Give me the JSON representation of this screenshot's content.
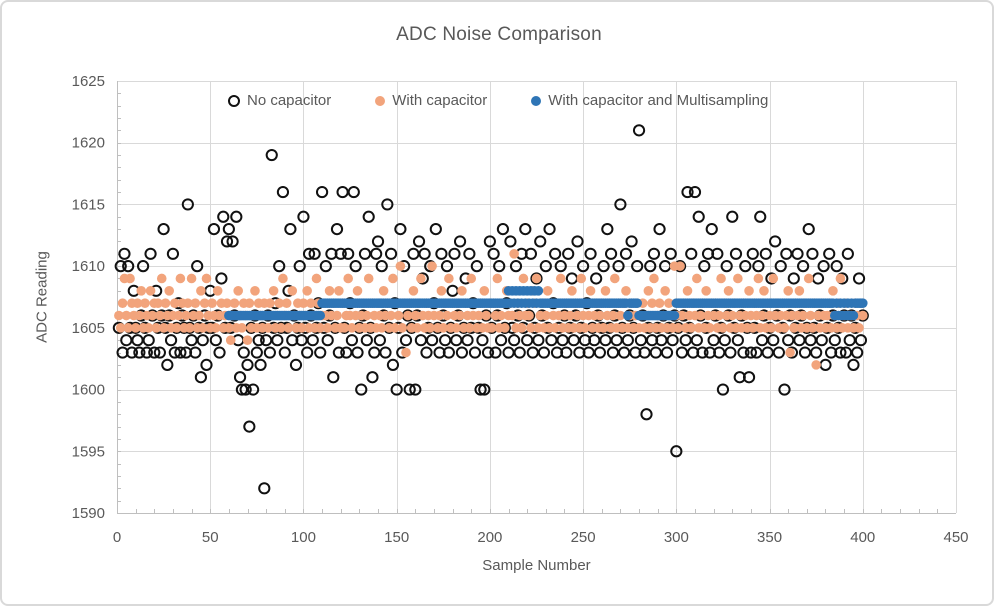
{
  "chart_data": {
    "type": "scatter",
    "title": "ADC Noise Comparison",
    "xlabel": "Sample Number",
    "ylabel": "ADC Reading",
    "xlim": [
      0,
      450
    ],
    "ylim": [
      1590,
      1625
    ],
    "x_ticks": [
      0,
      50,
      100,
      150,
      200,
      250,
      300,
      350,
      400,
      450
    ],
    "y_ticks": [
      1590,
      1595,
      1600,
      1605,
      1610,
      1615,
      1620,
      1625
    ],
    "x_minor_step": 10,
    "y_minor_step": 1,
    "grid": true,
    "legend_position": "top-inside",
    "colors": {
      "no_capacitor": "#111111",
      "with_capacitor": "#F2A47C",
      "multisampling": "#2E75B6",
      "gridline": "#D9D9D9",
      "axis_line": "#BFBFBF",
      "text": "#595959",
      "background": "#FFFFFF",
      "frame_border": "#D9D9D9"
    },
    "series": [
      {
        "name": "No capacitor",
        "marker": "open-circle",
        "color": "#111111",
        "x_start": 1,
        "y": [
          1605,
          1610,
          1603,
          1611,
          1604,
          1610,
          1605,
          1603,
          1608,
          1605,
          1604,
          1603,
          1606,
          1610,
          1605,
          1603,
          1604,
          1611,
          1606,
          1603,
          1608,
          1605,
          1603,
          1606,
          1613,
          1605,
          1602,
          1606,
          1604,
          1611,
          1603,
          1605,
          1607,
          1603,
          1606,
          1605,
          1603,
          1615,
          1605,
          1604,
          1606,
          1603,
          1610,
          1605,
          1601,
          1604,
          1606,
          1602,
          1605,
          1608,
          1605,
          1613,
          1604,
          1606,
          1603,
          1609,
          1614,
          1605,
          1612,
          1613,
          1605,
          1612,
          1606,
          1614,
          1604,
          1601,
          1600,
          1603,
          1600,
          1602,
          1597,
          1605,
          1600,
          1606,
          1603,
          1604,
          1602,
          1605,
          1592,
          1604,
          1606,
          1603,
          1619,
          1605,
          1607,
          1604,
          1610,
          1605,
          1616,
          1603,
          1605,
          1608,
          1613,
          1604,
          1606,
          1602,
          1605,
          1610,
          1604,
          1614,
          1605,
          1603,
          1611,
          1606,
          1604,
          1611,
          1605,
          1607,
          1603,
          1616,
          1605,
          1610,
          1604,
          1606,
          1611,
          1601,
          1605,
          1613,
          1603,
          1611,
          1616,
          1605,
          1603,
          1611,
          1607,
          1604,
          1616,
          1610,
          1603,
          1605,
          1600,
          1606,
          1611,
          1604,
          1614,
          1605,
          1601,
          1603,
          1611,
          1612,
          1604,
          1610,
          1606,
          1603,
          1615,
          1605,
          1611,
          1602,
          1607,
          1600,
          1605,
          1613,
          1603,
          1610,
          1604,
          1606,
          1600,
          1605,
          1611,
          1600,
          1606,
          1612,
          1604,
          1609,
          1611,
          1603,
          1605,
          1610,
          1604,
          1607,
          1613,
          1605,
          1603,
          1611,
          1606,
          1604,
          1610,
          1603,
          1605,
          1608,
          1611,
          1604,
          1606,
          1612,
          1603,
          1605,
          1609,
          1604,
          1611,
          1605,
          1607,
          1603,
          1610,
          1605,
          1600,
          1604,
          1600,
          1606,
          1603,
          1612,
          1605,
          1611,
          1603,
          1606,
          1610,
          1604,
          1613,
          1605,
          1607,
          1603,
          1612,
          1605,
          1604,
          1610,
          1606,
          1603,
          1611,
          1605,
          1613,
          1604,
          1606,
          1611,
          1603,
          1605,
          1609,
          1604,
          1612,
          1606,
          1603,
          1610,
          1605,
          1613,
          1604,
          1607,
          1611,
          1603,
          1605,
          1610,
          1604,
          1606,
          1603,
          1611,
          1605,
          1609,
          1604,
          1606,
          1612,
          1603,
          1605,
          1610,
          1604,
          1607,
          1603,
          1611,
          1605,
          1604,
          1609,
          1606,
          1603,
          1605,
          1610,
          1604,
          1613,
          1605,
          1611,
          1603,
          1606,
          1604,
          1610,
          1615,
          1605,
          1603,
          1611,
          1604,
          1606,
          1612,
          1605,
          1603,
          1610,
          1621,
          1604,
          1606,
          1603,
          1598,
          1605,
          1610,
          1604,
          1611,
          1603,
          1605,
          1613,
          1604,
          1606,
          1610,
          1603,
          1605,
          1611,
          1604,
          1606,
          1595,
          1605,
          1610,
          1603,
          1606,
          1604,
          1616,
          1605,
          1611,
          1603,
          1616,
          1604,
          1614,
          1606,
          1603,
          1610,
          1605,
          1611,
          1603,
          1613,
          1604,
          1606,
          1611,
          1603,
          1605,
          1600,
          1604,
          1610,
          1606,
          1603,
          1614,
          1605,
          1611,
          1604,
          1601,
          1606,
          1603,
          1610,
          1605,
          1601,
          1603,
          1611,
          1605,
          1603,
          1610,
          1614,
          1604,
          1606,
          1611,
          1603,
          1605,
          1609,
          1604,
          1612,
          1606,
          1603,
          1610,
          1605,
          1600,
          1611,
          1604,
          1606,
          1603,
          1609,
          1605,
          1611,
          1604,
          1606,
          1610,
          1603,
          1605,
          1613,
          1604,
          1611,
          1605,
          1603,
          1609,
          1606,
          1604,
          1610,
          1602,
          1605,
          1611,
          1603,
          1606,
          1604,
          1610,
          1605,
          1603,
          1609,
          1606,
          1603,
          1611,
          1604,
          1606,
          1602,
          1605,
          1603,
          1609,
          1604,
          1606
        ]
      },
      {
        "name": "With capacitor",
        "marker": "circle",
        "color": "#F2A47C",
        "x_start": 1,
        "y": [
          1606,
          1605,
          1607,
          1609,
          1606,
          1605,
          1609,
          1607,
          1606,
          1605,
          1607,
          1606,
          1608,
          1605,
          1607,
          1606,
          1605,
          1608,
          1606,
          1607,
          1605,
          1607,
          1606,
          1609,
          1605,
          1607,
          1606,
          1608,
          1605,
          1606,
          1607,
          1605,
          1606,
          1609,
          1607,
          1605,
          1606,
          1607,
          1605,
          1609,
          1606,
          1607,
          1605,
          1606,
          1608,
          1605,
          1607,
          1609,
          1606,
          1605,
          1607,
          1606,
          1605,
          1608,
          1606,
          1607,
          1605,
          1606,
          1607,
          1605,
          1604,
          1606,
          1607,
          1605,
          1608,
          1606,
          1605,
          1607,
          1606,
          1604,
          1607,
          1605,
          1606,
          1608,
          1605,
          1607,
          1606,
          1605,
          1607,
          1606,
          1605,
          1607,
          1606,
          1608,
          1605,
          1606,
          1607,
          1605,
          1609,
          1606,
          1607,
          1605,
          1606,
          1608,
          1606,
          1605,
          1607,
          1606,
          1605,
          1607,
          1606,
          1608,
          1605,
          1607,
          1606,
          1605,
          1609,
          1607,
          1605,
          1606,
          1607,
          1606,
          1605,
          1608,
          1606,
          1607,
          1605,
          1606,
          1608,
          1605,
          1607,
          1605,
          1606,
          1609,
          1606,
          1605,
          1607,
          1606,
          1608,
          1605,
          1606,
          1607,
          1605,
          1606,
          1609,
          1605,
          1607,
          1606,
          1605,
          1607,
          1606,
          1605,
          1608,
          1606,
          1607,
          1605,
          1606,
          1609,
          1605,
          1607,
          1606,
          1610,
          1605,
          1607,
          1603,
          1606,
          1607,
          1605,
          1608,
          1606,
          1605,
          1607,
          1609,
          1606,
          1605,
          1607,
          1606,
          1605,
          1610,
          1606,
          1607,
          1605,
          1606,
          1608,
          1605,
          1607,
          1606,
          1609,
          1605,
          1607,
          1606,
          1605,
          1607,
          1606,
          1608,
          1605,
          1607,
          1606,
          1605,
          1609,
          1606,
          1607,
          1605,
          1606,
          1607,
          1605,
          1608,
          1606,
          1605,
          1607,
          1605,
          1607,
          1606,
          1609,
          1605,
          1606,
          1607,
          1605,
          1608,
          1606,
          1607,
          1606,
          1611,
          1605,
          1607,
          1606,
          1605,
          1609,
          1606,
          1607,
          1606,
          1605,
          1608,
          1607,
          1609,
          1605,
          1606,
          1607,
          1605,
          1606,
          1608,
          1605,
          1607,
          1606,
          1605,
          1607,
          1606,
          1609,
          1605,
          1606,
          1607,
          1605,
          1606,
          1608,
          1605,
          1607,
          1606,
          1605,
          1609,
          1606,
          1605,
          1607,
          1606,
          1608,
          1605,
          1606,
          1607,
          1605,
          1606,
          1607,
          1605,
          1608,
          1606,
          1607,
          1605,
          1606,
          1609,
          1605,
          1607,
          1606,
          1605,
          1607,
          1608,
          1605,
          1606,
          1607,
          1605,
          1606,
          1607,
          1605,
          1606,
          1607,
          1605,
          1606,
          1608,
          1605,
          1607,
          1609,
          1605,
          1606,
          1607,
          1605,
          1606,
          1608,
          1605,
          1607,
          1606,
          1605,
          1610,
          1606,
          1605,
          1610,
          1606,
          1607,
          1605,
          1608,
          1606,
          1605,
          1607,
          1606,
          1609,
          1605,
          1606,
          1607,
          1605,
          1608,
          1606,
          1605,
          1607,
          1606,
          1607,
          1605,
          1606,
          1609,
          1605,
          1607,
          1606,
          1608,
          1605,
          1606,
          1607,
          1605,
          1609,
          1606,
          1605,
          1607,
          1606,
          1605,
          1608,
          1606,
          1605,
          1607,
          1606,
          1609,
          1605,
          1606,
          1608,
          1605,
          1607,
          1606,
          1605,
          1609,
          1606,
          1607,
          1605,
          1606,
          1607,
          1605,
          1606,
          1608,
          1603,
          1606,
          1605,
          1607,
          1606,
          1608,
          1605,
          1606,
          1607,
          1605,
          1609,
          1606,
          1605,
          1607,
          1602,
          1606,
          1605,
          1607,
          1606,
          1605,
          1606,
          1607,
          1605,
          1608,
          1606,
          1605,
          1607,
          1609,
          1605,
          1606,
          1607,
          1605,
          1606,
          1606,
          1605,
          1607,
          1606,
          1605,
          1607,
          1606
        ]
      },
      {
        "name": "With capacitor and Multisampling",
        "marker": "circle",
        "color": "#2E75B6",
        "runs": [
          [
            60,
            109,
            1606
          ],
          [
            110,
            209,
            1607
          ],
          [
            210,
            210,
            1608
          ],
          [
            211,
            211,
            1607
          ],
          [
            212,
            212,
            1608
          ],
          [
            213,
            213,
            1607
          ],
          [
            214,
            214,
            1608
          ],
          [
            215,
            215,
            1607
          ],
          [
            216,
            216,
            1608
          ],
          [
            217,
            217,
            1607
          ],
          [
            218,
            218,
            1608
          ],
          [
            219,
            219,
            1607
          ],
          [
            220,
            220,
            1608
          ],
          [
            221,
            221,
            1607
          ],
          [
            222,
            222,
            1608
          ],
          [
            223,
            223,
            1607
          ],
          [
            224,
            224,
            1608
          ],
          [
            225,
            225,
            1607
          ],
          [
            226,
            226,
            1608
          ],
          [
            227,
            273,
            1607
          ],
          [
            274,
            274,
            1606
          ],
          [
            275,
            279,
            1607
          ],
          [
            280,
            299,
            1606
          ],
          [
            300,
            384,
            1607
          ],
          [
            385,
            385,
            1606
          ],
          [
            386,
            386,
            1607
          ],
          [
            387,
            387,
            1606
          ],
          [
            388,
            388,
            1607
          ],
          [
            389,
            389,
            1606
          ],
          [
            390,
            390,
            1607
          ],
          [
            391,
            391,
            1606
          ],
          [
            392,
            392,
            1607
          ],
          [
            393,
            393,
            1606
          ],
          [
            394,
            394,
            1607
          ],
          [
            395,
            395,
            1606
          ],
          [
            396,
            400,
            1607
          ]
        ]
      }
    ]
  }
}
